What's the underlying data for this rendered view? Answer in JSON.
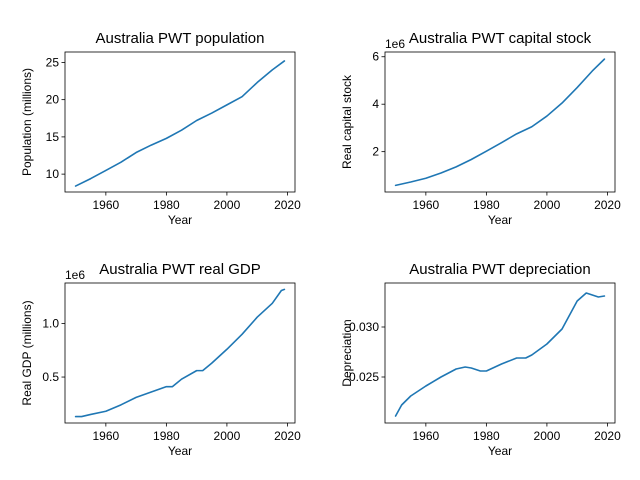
{
  "chart_data": [
    {
      "type": "line",
      "title": "Australia PWT population",
      "xlabel": "Year",
      "ylabel": "Population (millions)",
      "offset_text": "",
      "xlim": [
        1946.5,
        2022.5
      ],
      "ylim": [
        7.6,
        26.4
      ],
      "xticks": [
        1960,
        1980,
        2000,
        2020
      ],
      "yticks": [
        10,
        15,
        20,
        25
      ],
      "ytick_labels": [
        "10",
        "15",
        "20",
        "25"
      ],
      "series": [
        {
          "color": "#1f77b4",
          "x": [
            1950,
            1955,
            1960,
            1965,
            1970,
            1975,
            1980,
            1985,
            1990,
            1995,
            2000,
            2005,
            2010,
            2015,
            2019
          ],
          "values": [
            8.4,
            9.4,
            10.5,
            11.6,
            12.9,
            13.9,
            14.8,
            15.9,
            17.2,
            18.2,
            19.3,
            20.4,
            22.3,
            24.0,
            25.2
          ]
        }
      ]
    },
    {
      "type": "line",
      "title": "Australia PWT capital stock",
      "xlabel": "Year",
      "ylabel": "Real capital stock",
      "offset_text": "1e6",
      "xlim": [
        1946.5,
        2022.5
      ],
      "ylim": [
        0.3,
        6.2
      ],
      "xticks": [
        1960,
        1980,
        2000,
        2020
      ],
      "yticks": [
        2,
        4,
        6
      ],
      "ytick_labels": [
        "2",
        "4",
        "6"
      ],
      "series": [
        {
          "color": "#1f77b4",
          "x": [
            1950,
            1955,
            1960,
            1965,
            1970,
            1975,
            1980,
            1985,
            1990,
            1995,
            2000,
            2005,
            2010,
            2015,
            2019
          ],
          "values": [
            0.58,
            0.72,
            0.88,
            1.1,
            1.36,
            1.67,
            2.02,
            2.38,
            2.75,
            3.05,
            3.5,
            4.05,
            4.7,
            5.4,
            5.9
          ]
        }
      ]
    },
    {
      "type": "line",
      "title": "Australia PWT real GDP",
      "xlabel": "Year",
      "ylabel": "Real GDP (millions)",
      "offset_text": "1e6",
      "xlim": [
        1946.5,
        2022.5
      ],
      "ylim": [
        0.07,
        1.38
      ],
      "xticks": [
        1960,
        1980,
        2000,
        2020
      ],
      "yticks": [
        0.5,
        1.0
      ],
      "ytick_labels": [
        "0.5",
        "1.0"
      ],
      "series": [
        {
          "color": "#1f77b4",
          "x": [
            1950,
            1952,
            1955,
            1960,
            1965,
            1970,
            1975,
            1980,
            1982,
            1985,
            1990,
            1992,
            1995,
            2000,
            2005,
            2010,
            2015,
            2018,
            2019
          ],
          "values": [
            0.13,
            0.13,
            0.15,
            0.18,
            0.24,
            0.31,
            0.36,
            0.41,
            0.41,
            0.48,
            0.56,
            0.56,
            0.63,
            0.76,
            0.9,
            1.06,
            1.19,
            1.31,
            1.32
          ]
        }
      ]
    },
    {
      "type": "line",
      "title": "Australia PWT depreciation",
      "xlabel": "Year",
      "ylabel": "Depreciation",
      "offset_text": "",
      "xlim": [
        1946.5,
        2022.5
      ],
      "ylim": [
        0.0204,
        0.0344
      ],
      "xticks": [
        1960,
        1980,
        2000,
        2020
      ],
      "yticks": [
        0.025,
        0.03
      ],
      "ytick_labels": [
        "0.025",
        "0.030"
      ],
      "series": [
        {
          "color": "#1f77b4",
          "x": [
            1950,
            1952,
            1955,
            1960,
            1965,
            1970,
            1973,
            1975,
            1978,
            1980,
            1985,
            1990,
            1993,
            1995,
            2000,
            2005,
            2010,
            2013,
            2015,
            2017,
            2019
          ],
          "values": [
            0.0211,
            0.0222,
            0.0231,
            0.0241,
            0.025,
            0.0258,
            0.026,
            0.0259,
            0.0256,
            0.0256,
            0.0263,
            0.0269,
            0.0269,
            0.0272,
            0.0283,
            0.0298,
            0.0326,
            0.0334,
            0.0332,
            0.033,
            0.0331
          ]
        }
      ]
    }
  ]
}
